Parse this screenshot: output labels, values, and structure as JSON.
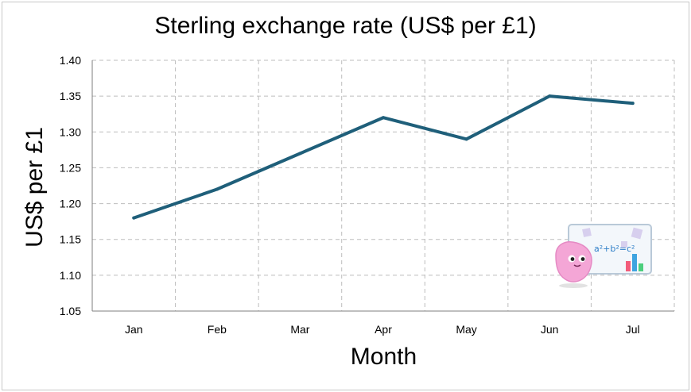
{
  "chart_data": {
    "type": "line",
    "title": "Sterling exchange rate (US$ per £1)",
    "xlabel": "Month",
    "ylabel": "US$ per £1",
    "categories": [
      "Jan",
      "Feb",
      "Mar",
      "Apr",
      "May",
      "Jun",
      "Jul"
    ],
    "series": [
      {
        "values": [
          1.18,
          1.22,
          1.27,
          1.32,
          1.29,
          1.35,
          1.34
        ]
      }
    ],
    "ylim": [
      1.05,
      1.4
    ],
    "yticks": [
      "1.05",
      "1.10",
      "1.15",
      "1.20",
      "1.25",
      "1.30",
      "1.35",
      "1.40"
    ],
    "grid": true,
    "line_color": "#1f5f7a",
    "grid_color": "#bdbdbd"
  },
  "decoration": {
    "icon": "math-mascot-whiteboard-icon",
    "formula": "a²+b²=c²"
  }
}
